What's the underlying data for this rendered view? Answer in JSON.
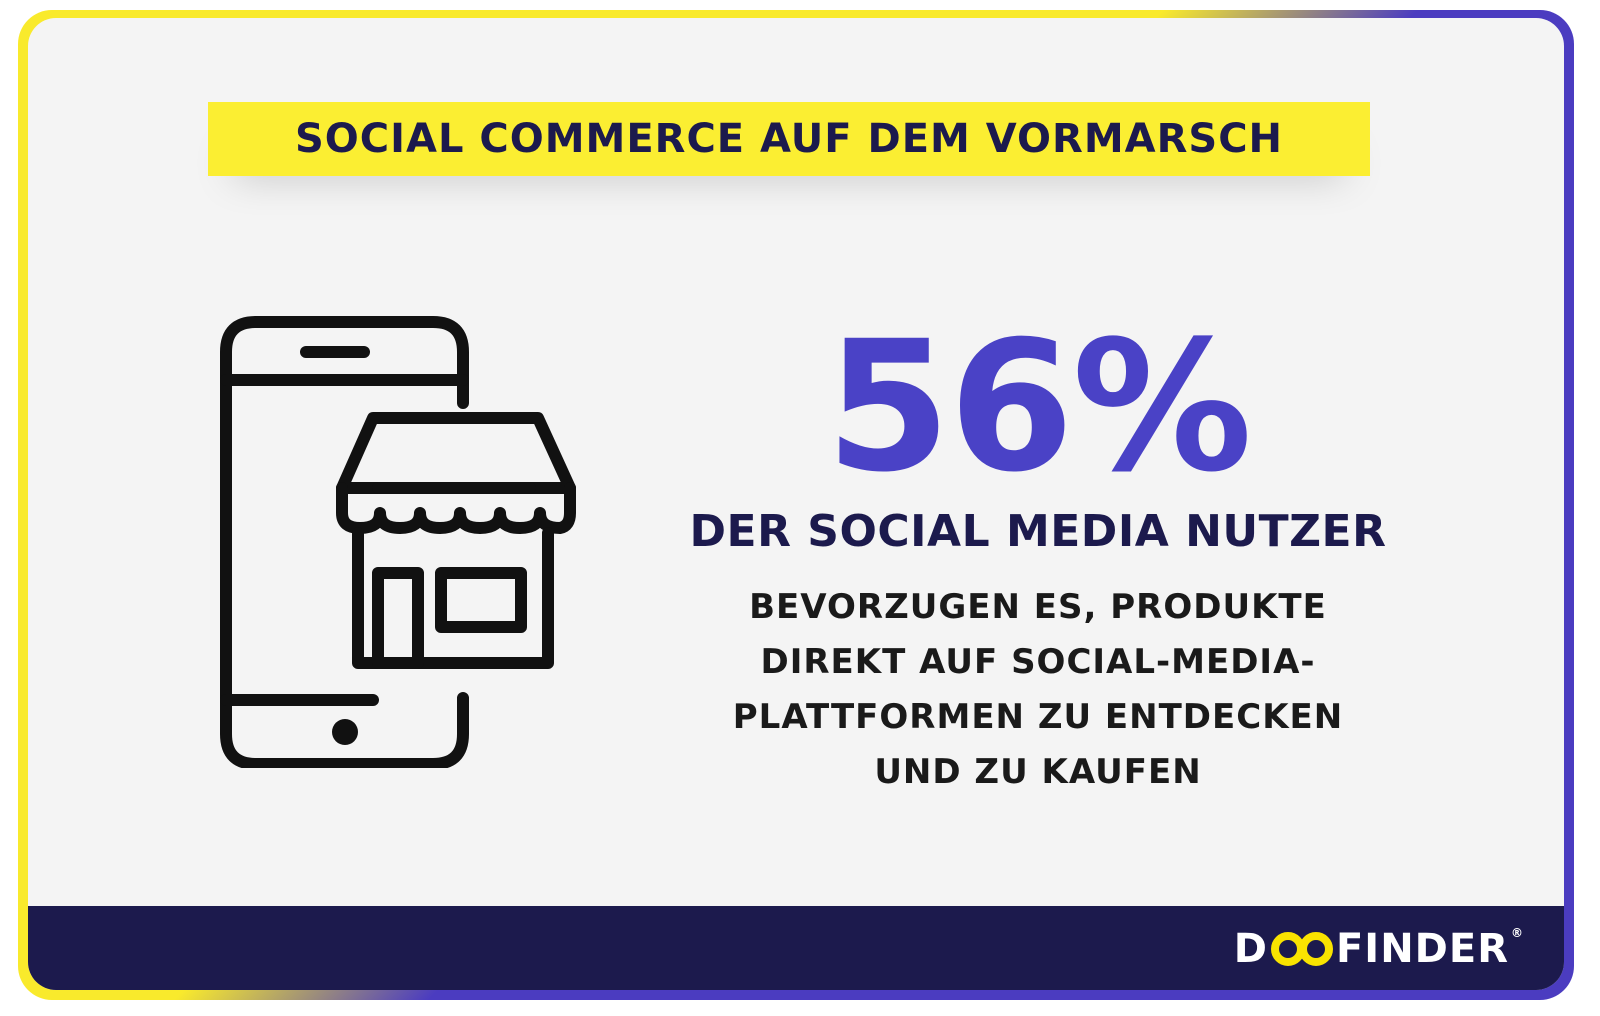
{
  "title": "SOCIAL COMMERCE AUF DEM VORMARSCH",
  "stat": {
    "value": "56%",
    "subheading": "DER SOCIAL MEDIA NUTZER",
    "description_lines": [
      "BEVORZUGEN ES, PRODUKTE",
      "DIREKT AUF SOCIAL-MEDIA-",
      "PLATTFORMEN ZU ENTDECKEN",
      "UND ZU KAUFEN"
    ]
  },
  "logo": {
    "prefix": "D",
    "suffix": "FINDER",
    "registered": "®"
  },
  "icons": {
    "main": "smartphone-store-icon"
  },
  "colors": {
    "yellow": "#fbee32",
    "navy": "#1c1a4d",
    "purple": "#4a42c6",
    "background": "#f4f4f4"
  }
}
